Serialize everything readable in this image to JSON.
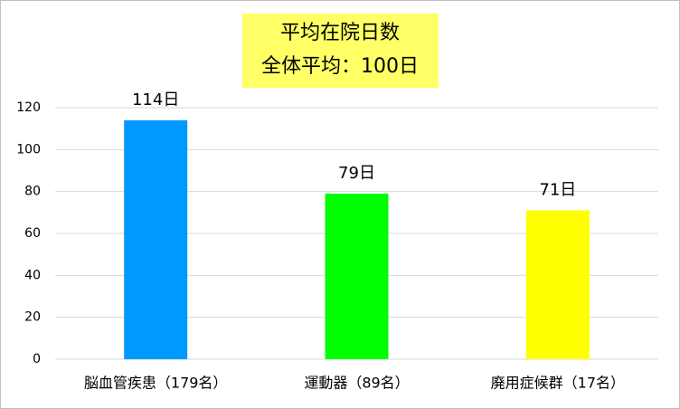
{
  "chart_data": {
    "type": "bar",
    "title": "平均在院日数",
    "subtitle": "全体平均：100日",
    "categories": [
      "脳血管疾患（179名）",
      "運動器（89名）",
      "廃用症候群（17名）"
    ],
    "values": [
      114,
      79,
      71
    ],
    "value_labels": [
      "114日",
      "79日",
      "71日"
    ],
    "colors": [
      "#0099ff",
      "#00ff00",
      "#ffff00"
    ],
    "ylim": [
      0,
      120
    ],
    "yticks": [
      0,
      20,
      40,
      60,
      80,
      100,
      120
    ],
    "grid": true
  }
}
